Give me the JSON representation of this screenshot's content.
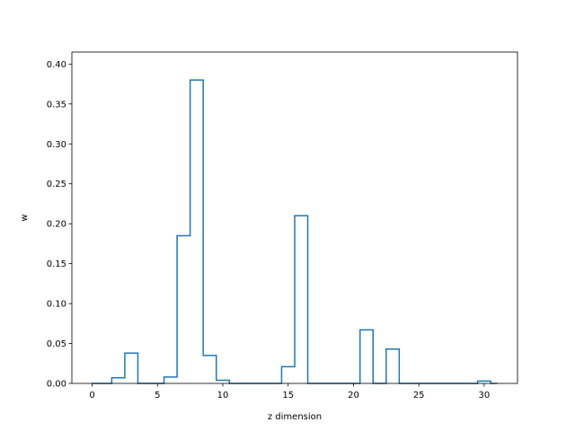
{
  "chart_data": {
    "type": "step",
    "title": "",
    "xlabel": "z dimension",
    "ylabel": "w",
    "xlim": [
      -1.55,
      32.55
    ],
    "ylim": [
      0,
      0.415
    ],
    "xticks": [
      "0",
      "5",
      "10",
      "15",
      "20",
      "25",
      "30"
    ],
    "yticks": [
      "0.00",
      "0.05",
      "0.10",
      "0.15",
      "0.20",
      "0.25",
      "0.30",
      "0.35",
      "0.40"
    ],
    "grid": false,
    "legend": false,
    "color": "#1f77b4",
    "x": [
      0,
      1,
      2,
      3,
      4,
      5,
      6,
      7,
      8,
      9,
      10,
      11,
      12,
      13,
      14,
      15,
      16,
      17,
      18,
      19,
      20,
      21,
      22,
      23,
      24,
      25,
      26,
      27,
      28,
      29,
      30,
      31
    ],
    "values": [
      0.0,
      0.0,
      0.007,
      0.038,
      0.0,
      0.0,
      0.008,
      0.185,
      0.38,
      0.035,
      0.004,
      0.0,
      0.0,
      0.0,
      0.0,
      0.021,
      0.21,
      0.0,
      0.0,
      0.0,
      0.0,
      0.067,
      0.0,
      0.043,
      0.0,
      0.0,
      0.0,
      0.0,
      0.0,
      0.0,
      0.003,
      0.0
    ]
  }
}
